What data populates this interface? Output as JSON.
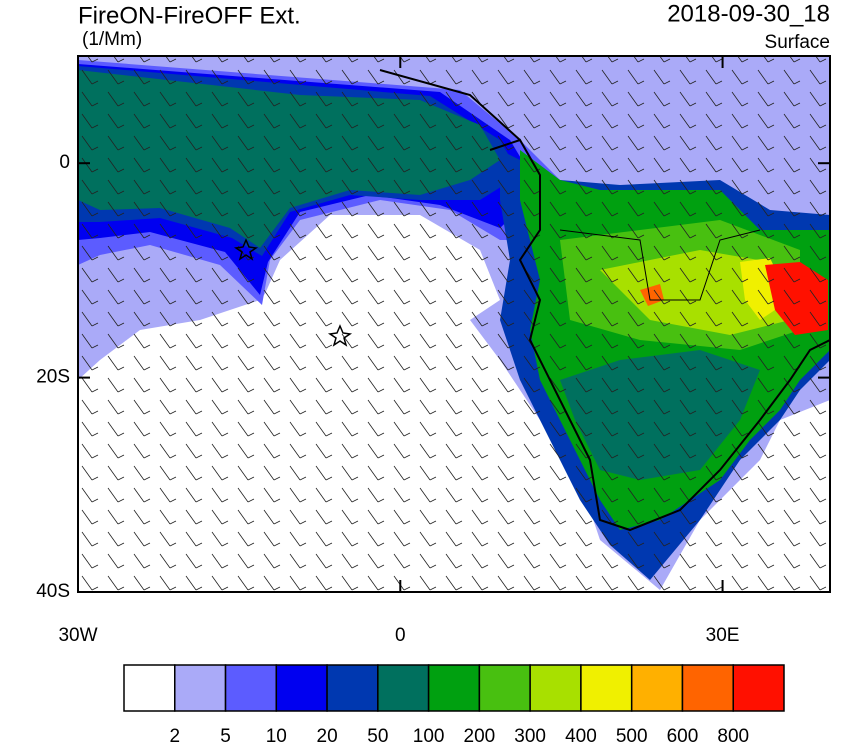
{
  "header": {
    "title": "FireON-FireOFF Ext.",
    "units": "(1/Mm)",
    "datetime": "2018-09-30_18",
    "level": "Surface"
  },
  "map": {
    "lon_range": [
      -30,
      40
    ],
    "lat_range": [
      -40,
      10
    ],
    "lat_ticks": [
      {
        "value": 0,
        "label": "0"
      },
      {
        "value": -20,
        "label": "20S"
      },
      {
        "value": -40,
        "label": "40S"
      }
    ],
    "lon_ticks": [
      {
        "value": -30,
        "label": "30W"
      },
      {
        "value": 0,
        "label": "0"
      },
      {
        "value": 30,
        "label": "30E"
      }
    ]
  },
  "colorbar": {
    "colors": [
      "#ffffff",
      "#aaaaf8",
      "#5c5cff",
      "#0000f0",
      "#0038b0",
      "#00705e",
      "#00a010",
      "#48c010",
      "#a8e000",
      "#f0f000",
      "#ffb000",
      "#ff6400",
      "#ff1000"
    ],
    "levels": [
      2,
      5,
      10,
      20,
      50,
      100,
      200,
      300,
      400,
      500,
      600,
      800
    ]
  }
}
